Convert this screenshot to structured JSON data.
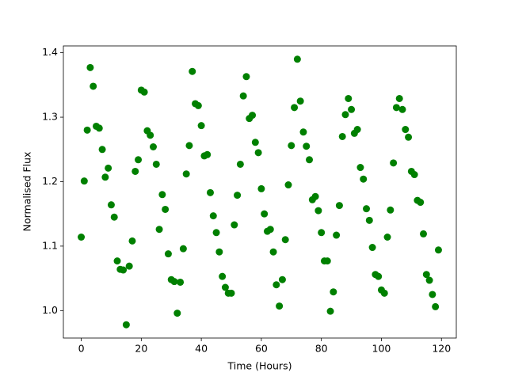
{
  "chart_data": {
    "type": "scatter",
    "xlabel": "Time (Hours)",
    "ylabel": "Normalised Flux",
    "color": "#008000",
    "xlim": [
      -5.95,
      124.95
    ],
    "ylim": [
      0.9574,
      1.4106
    ],
    "xticks": [
      0,
      20,
      40,
      60,
      80,
      100,
      120
    ],
    "yticks": [
      {
        "value": 1,
        "label": "1.0"
      },
      1.1,
      1.2,
      1.3,
      1.4
    ],
    "grid": false,
    "x": [
      0,
      1,
      2,
      3,
      4,
      5,
      6,
      7,
      8,
      9,
      10,
      11,
      12,
      13,
      14,
      15,
      16,
      17,
      18,
      19,
      20,
      21,
      22,
      23,
      24,
      25,
      26,
      27,
      28,
      29,
      30,
      31,
      32,
      33,
      34,
      35,
      36,
      37,
      38,
      39,
      40,
      41,
      42,
      43,
      44,
      45,
      46,
      47,
      48,
      49,
      50,
      51,
      52,
      53,
      54,
      55,
      56,
      57,
      58,
      59,
      60,
      61,
      62,
      63,
      64,
      65,
      66,
      67,
      68,
      69,
      70,
      71,
      72,
      73,
      74,
      75,
      76,
      77,
      78,
      79,
      80,
      81,
      82,
      83,
      84,
      85,
      86,
      87,
      88,
      89,
      90,
      91,
      92,
      93,
      94,
      95,
      96,
      97,
      98,
      99,
      100,
      101,
      102,
      103,
      104,
      105,
      106,
      107,
      108,
      109,
      110,
      111,
      112,
      113,
      114,
      115,
      116,
      117,
      118,
      119
    ],
    "y": [
      1.114,
      1.201,
      1.28,
      1.377,
      1.348,
      1.286,
      1.283,
      1.25,
      1.207,
      1.221,
      1.164,
      1.145,
      1.077,
      1.064,
      1.063,
      0.978,
      1.069,
      1.108,
      1.216,
      1.234,
      1.342,
      1.339,
      1.279,
      1.272,
      1.254,
      1.227,
      1.126,
      1.18,
      1.157,
      1.088,
      1.048,
      1.045,
      0.996,
      1.044,
      1.096,
      1.212,
      1.256,
      1.371,
      1.321,
      1.318,
      1.287,
      1.24,
      1.242,
      1.183,
      1.147,
      1.121,
      1.091,
      1.053,
      1.036,
      1.027,
      1.027,
      1.133,
      1.179,
      1.227,
      1.333,
      1.363,
      1.298,
      1.303,
      1.261,
      1.245,
      1.189,
      1.15,
      1.123,
      1.126,
      1.091,
      1.04,
      1.007,
      1.048,
      1.11,
      1.195,
      1.256,
      1.315,
      1.39,
      1.325,
      1.277,
      1.255,
      1.234,
      1.172,
      1.177,
      1.155,
      1.121,
      1.077,
      1.077,
      0.999,
      1.029,
      1.117,
      1.163,
      1.27,
      1.304,
      1.329,
      1.312,
      1.275,
      1.281,
      1.222,
      1.204,
      1.158,
      1.14,
      1.098,
      1.056,
      1.053,
      1.032,
      1.027,
      1.114,
      1.156,
      1.229,
      1.315,
      1.329,
      1.312,
      1.281,
      1.269,
      1.216,
      1.211,
      1.171,
      1.168,
      1.119,
      1.056,
      1.047,
      1.025,
      1.006,
      1.094
    ]
  }
}
